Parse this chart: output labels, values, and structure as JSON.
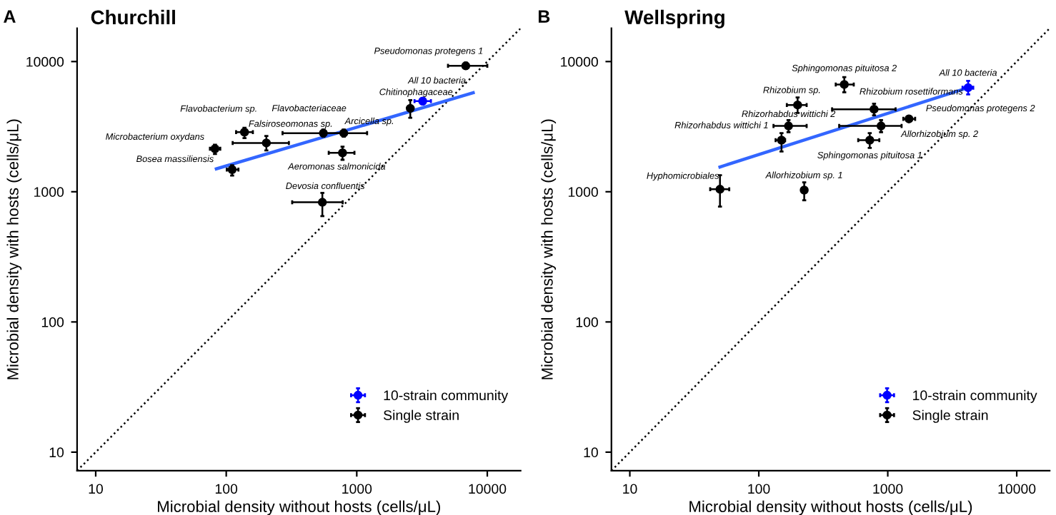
{
  "chart_data": [
    {
      "type": "scatter",
      "title": "Churchill",
      "xlabel": "Microbial density without hosts (cells/μL)",
      "ylabel": "Microbial density with hosts (cells/μL)",
      "log": "xy",
      "xlim": [
        7.2,
        18000
      ],
      "ylim": [
        7.2,
        18000
      ],
      "xticks": [
        10,
        100,
        1000,
        10000
      ],
      "yticks": [
        10,
        100,
        1000,
        10000
      ],
      "grid": false,
      "legend": "bottom right",
      "marker": "circle",
      "series": [
        {
          "type": "line",
          "marker": "none",
          "color": "#000000",
          "line_style": "dotted",
          "x": [
            7.2,
            18000
          ],
          "values": [
            7.2,
            18000
          ]
        },
        {
          "type": "line",
          "marker": "none",
          "color": "#3366ff",
          "line_style": "solid",
          "x": [
            84,
            7800
          ],
          "values": [
            1500,
            5760
          ]
        },
        {
          "name": "10-strain community",
          "color": "#0000ff",
          "x": [
            3200
          ],
          "values": [
            4970
          ],
          "errors": [
            [
              4700,
              5250
            ]
          ],
          "xerrors": [
            [
              2770,
              3700
            ]
          ]
        },
        {
          "name": "Single strain",
          "color": "#000000",
          "x": [
            6840,
            2570,
            138,
            555,
            795,
            203,
            82,
            778,
            111,
            545
          ],
          "values": [
            9270,
            4370,
            2870,
            2820,
            2820,
            2370,
            2140,
            1990,
            1480,
            830
          ],
          "errors": [
            [
              8800,
              9800
            ],
            [
              3700,
              5060
            ],
            [
              2580,
              3100
            ],
            [
              2650,
              3000
            ],
            [
              2650,
              3000
            ],
            [
              2080,
              2680
            ],
            [
              1950,
              2300
            ],
            [
              1760,
              2220
            ],
            [
              1330,
              1600
            ],
            [
              650,
              980
            ]
          ],
          "xerrors": [
            [
              5000,
              10000
            ],
            [
              2450,
              2700
            ],
            [
              119,
              160
            ],
            [
              270,
              800
            ],
            [
              560,
              1200
            ],
            [
              112,
              302
            ],
            [
              75,
              90
            ],
            [
              610,
              960
            ],
            [
              101,
              124
            ],
            [
              320,
              780
            ]
          ]
        }
      ],
      "annotations": [
        "A",
        {
          "text": "Pseudomonas protegens 1",
          "x": 6840,
          "y": 9270
        },
        {
          "text": "All 10 bacteria",
          "x": 3200,
          "y": 4970
        },
        {
          "text": "Chitinophagaceae",
          "x": 2570,
          "y": 4370
        },
        {
          "text": "Flavobacterium sp.",
          "x": 138,
          "y": 2870
        },
        {
          "text": "Flavobacteriaceae",
          "x": 555,
          "y": 2820
        },
        {
          "text": "Arcicella sp.",
          "x": 795,
          "y": 2820
        },
        {
          "text": "Falsiroseomonas sp.",
          "x": 203,
          "y": 2370
        },
        {
          "text": "Microbacterium oxydans",
          "x": 82,
          "y": 2140
        },
        {
          "text": "Aeromonas salmonicida",
          "x": 778,
          "y": 1990
        },
        {
          "text": "Bosea massiliensis",
          "x": 111,
          "y": 1480
        },
        {
          "text": "Devosia confluentis",
          "x": 545,
          "y": 830
        }
      ]
    },
    {
      "type": "scatter",
      "title": "Wellspring",
      "xlabel": "Microbial density without hosts (cells/μL)",
      "ylabel": "Microbial density with hosts (cells/μL)",
      "log": "xy",
      "xlim": [
        7.2,
        18000
      ],
      "ylim": [
        7.2,
        18000
      ],
      "xticks": [
        10,
        100,
        1000,
        10000
      ],
      "yticks": [
        10,
        100,
        1000,
        10000
      ],
      "grid": false,
      "legend": "bottom right",
      "marker": "circle",
      "series": [
        {
          "type": "line",
          "marker": "none",
          "color": "#000000",
          "line_style": "dotted",
          "x": [
            7.2,
            18000
          ],
          "values": [
            7.2,
            18000
          ]
        },
        {
          "type": "line",
          "marker": "none",
          "color": "#3366ff",
          "line_style": "solid",
          "x": [
            50,
            4200
          ],
          "values": [
            1550,
            6300
          ]
        },
        {
          "name": "10-strain community",
          "color": "#0000ff",
          "x": [
            4200
          ],
          "values": [
            6300
          ],
          "errors": [
            [
              5600,
              7100
            ]
          ],
          "xerrors": [
            [
              3800,
              4600
            ]
          ]
        },
        {
          "name": "Single strain",
          "color": "#000000",
          "x": [
            460,
            200,
            783,
            170,
            887,
            1460,
            150,
            725,
            50,
            225
          ],
          "values": [
            6670,
            4640,
            4300,
            3200,
            3200,
            3630,
            2490,
            2490,
            1045,
            1030
          ],
          "errors": [
            [
              5800,
              7600
            ],
            [
              4030,
              5300
            ],
            [
              3870,
              4750
            ],
            [
              2870,
              3550
            ],
            [
              2870,
              3550
            ],
            [
              3450,
              3820
            ],
            [
              2040,
              2820
            ],
            [
              2170,
              2820
            ],
            [
              770,
              1340
            ],
            [
              860,
              1180
            ]
          ],
          "xerrors": [
            [
              395,
              545
            ],
            [
              165,
              235
            ],
            [
              370,
              1150
            ],
            [
              130,
              235
            ],
            [
              420,
              1280
            ],
            [
              1320,
              1630
            ],
            [
              135,
              160
            ],
            [
              590,
              860
            ],
            [
              42,
              59
            ],
            [
              215,
              235
            ]
          ]
        }
      ],
      "annotations": [
        "B",
        {
          "text": "Sphingomonas pituitosa 2",
          "x": 460,
          "y": 6670
        },
        {
          "text": "All 10 bacteria",
          "x": 4200,
          "y": 6300
        },
        {
          "text": "Rhizobium sp.",
          "x": 200,
          "y": 4640
        },
        {
          "text": "Rhizobium rosettiformans",
          "x": 783,
          "y": 4300
        },
        {
          "text": "Rhizorhabdus wittichi 2",
          "x": 170,
          "y": 3200
        },
        {
          "text": "Allorhizobium sp. 2",
          "x": 887,
          "y": 3200
        },
        {
          "text": "Pseudomonas protegens 2",
          "x": 1460,
          "y": 3630
        },
        {
          "text": "Rhizorhabdus wittichi 1",
          "x": 150,
          "y": 2490
        },
        {
          "text": "Sphingomonas pituitosa 1",
          "x": 725,
          "y": 2490
        },
        {
          "text": "Hyphomicrobiales",
          "x": 50,
          "y": 1045
        },
        {
          "text": "Allorhizobium sp. 1",
          "x": 225,
          "y": 1030
        }
      ]
    }
  ]
}
